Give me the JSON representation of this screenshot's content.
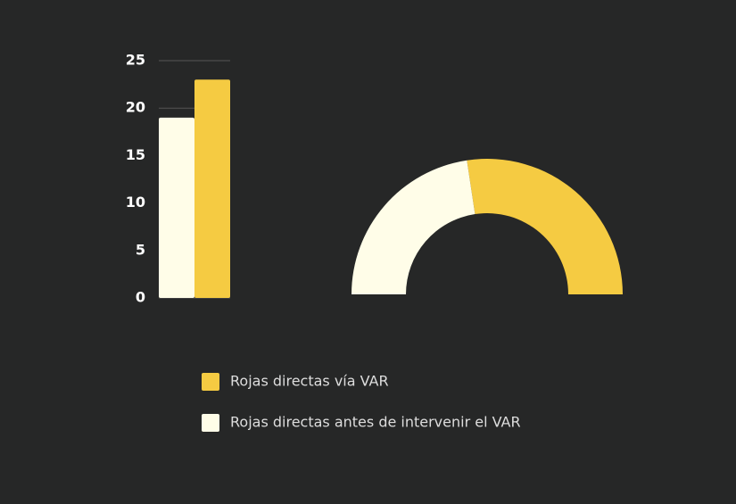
{
  "chart_data": [
    {
      "type": "bar",
      "categories": [
        null,
        null
      ],
      "values": [
        19,
        23
      ],
      "colors": [
        "#fffde8",
        "#f5cb42"
      ],
      "ylim": [
        0,
        25
      ],
      "yticks": [
        0,
        5,
        10,
        15,
        20,
        25
      ],
      "grid": true
    },
    {
      "type": "pie",
      "categories": [
        "Rojas directas vía VAR",
        "Rojas directas antes de intervenir el VAR"
      ],
      "values": [
        23,
        19
      ],
      "colors": [
        "#f5cb42",
        "#fffde8"
      ],
      "legend": "bottom"
    }
  ]
}
